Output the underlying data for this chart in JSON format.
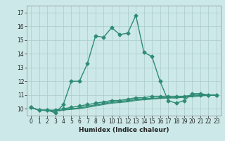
{
  "title": "",
  "xlabel": "Humidex (Indice chaleur)",
  "x_values": [
    0,
    1,
    2,
    3,
    4,
    5,
    6,
    7,
    8,
    9,
    10,
    11,
    12,
    13,
    14,
    15,
    16,
    17,
    18,
    19,
    20,
    21,
    22,
    23
  ],
  "main_line": [
    10.1,
    9.9,
    9.9,
    9.7,
    10.3,
    12.0,
    12.0,
    13.3,
    15.3,
    15.2,
    15.9,
    15.4,
    15.5,
    16.8,
    14.1,
    13.8,
    12.0,
    10.6,
    10.4,
    10.6,
    11.1,
    11.1,
    11.0,
    11.0
  ],
  "line2": [
    10.1,
    9.9,
    9.9,
    9.9,
    10.0,
    10.1,
    10.2,
    10.3,
    10.4,
    10.5,
    10.6,
    10.6,
    10.7,
    10.8,
    10.8,
    10.9,
    10.9,
    10.9,
    10.9,
    10.9,
    11.0,
    11.0,
    11.0,
    11.0
  ],
  "line3": [
    10.1,
    9.9,
    9.85,
    9.8,
    9.9,
    9.95,
    10.0,
    10.1,
    10.2,
    10.3,
    10.4,
    10.45,
    10.5,
    10.6,
    10.65,
    10.7,
    10.75,
    10.8,
    10.8,
    10.85,
    10.9,
    10.95,
    11.0,
    11.0
  ],
  "line4": [
    10.1,
    9.9,
    9.88,
    9.82,
    9.93,
    10.0,
    10.08,
    10.18,
    10.3,
    10.4,
    10.5,
    10.55,
    10.6,
    10.7,
    10.73,
    10.76,
    10.8,
    10.82,
    10.82,
    10.87,
    10.93,
    10.97,
    11.02,
    11.02
  ],
  "line5": [
    10.05,
    9.9,
    9.87,
    9.8,
    9.92,
    9.98,
    10.05,
    10.15,
    10.25,
    10.35,
    10.45,
    10.5,
    10.55,
    10.65,
    10.68,
    10.72,
    10.76,
    10.78,
    10.78,
    10.83,
    10.88,
    10.92,
    10.97,
    10.97
  ],
  "color": "#2e8b74",
  "bg_color": "#cce8e8",
  "grid_color": "#aacccc",
  "ylim": [
    9.5,
    17.5
  ],
  "xlim": [
    -0.5,
    23.5
  ],
  "yticks": [
    10,
    11,
    12,
    13,
    14,
    15,
    16,
    17
  ],
  "xticks": [
    0,
    1,
    2,
    3,
    4,
    5,
    6,
    7,
    8,
    9,
    10,
    11,
    12,
    13,
    14,
    15,
    16,
    17,
    18,
    19,
    20,
    21,
    22,
    23
  ],
  "marker": "D",
  "markersize": 2.5,
  "linewidth": 1.0,
  "tick_fontsize": 5.5,
  "xlabel_fontsize": 6.5
}
